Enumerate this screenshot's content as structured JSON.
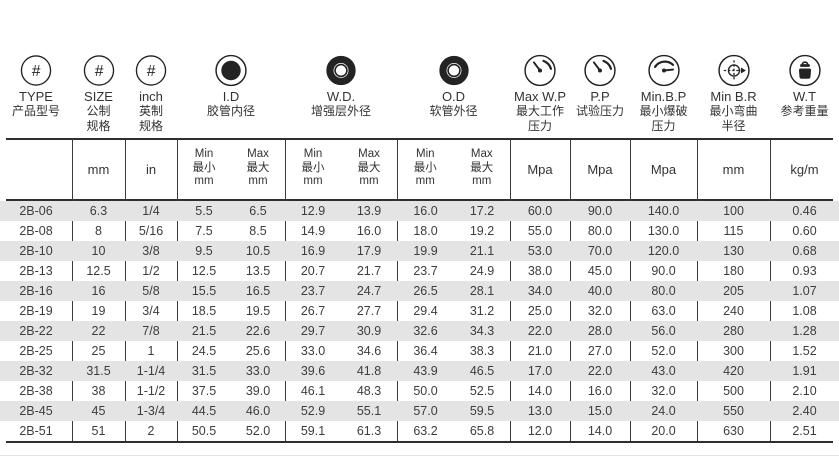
{
  "table": {
    "columns": [
      {
        "en": "TYPE",
        "cn": [
          "产品型号"
        ],
        "icon": "hash-circle-icon",
        "unit": ""
      },
      {
        "en": "SIZE",
        "cn": [
          "公制",
          "规格"
        ],
        "icon": "hash-circle-icon",
        "unit": "mm"
      },
      {
        "en": "inch",
        "cn": [
          "英制",
          "规格"
        ],
        "icon": "hash-circle-icon",
        "unit": "in"
      },
      {
        "en": "I.D",
        "cn": [
          "胶管内径"
        ],
        "icon": "inner-diameter-icon",
        "unit": "mm",
        "minmax": true
      },
      {
        "en": "W.D.",
        "cn": [
          "增强层外径"
        ],
        "icon": "reinforcement-ring-icon",
        "unit": "mm",
        "minmax": true
      },
      {
        "en": "O.D",
        "cn": [
          "软管外径"
        ],
        "icon": "outer-ring-icon",
        "unit": "mm",
        "minmax": true
      },
      {
        "en": "Max W.P",
        "cn": [
          "最大工作",
          "压力"
        ],
        "icon": "pressure-gauge-icon",
        "unit": "Mpa"
      },
      {
        "en": "P.P",
        "cn": [
          "试验压力"
        ],
        "icon": "pressure-gauge-icon",
        "unit": "Mpa"
      },
      {
        "en": "Min.B.P",
        "cn": [
          "最小爆破",
          "压力"
        ],
        "icon": "burst-pressure-gauge-icon",
        "unit": "Mpa"
      },
      {
        "en": "Min B.R",
        "cn": [
          "最小弯曲",
          "半径"
        ],
        "icon": "bend-radius-icon",
        "unit": "mm"
      },
      {
        "en": "W.T",
        "cn": [
          "参考重量"
        ],
        "icon": "weight-icon",
        "unit": "kg/m"
      }
    ],
    "minmax_labels": {
      "min_en": "Min",
      "min_cn": "最小",
      "max_en": "Max",
      "max_cn": "最大",
      "sub_unit": "mm"
    },
    "rows": [
      [
        "2B-06",
        "6.3",
        "1/4",
        "5.5",
        "6.5",
        "12.9",
        "13.9",
        "16.0",
        "17.2",
        "60.0",
        "90.0",
        "140.0",
        "100",
        "0.46"
      ],
      [
        "2B-08",
        "8",
        "5/16",
        "7.5",
        "8.5",
        "14.9",
        "16.0",
        "18.0",
        "19.2",
        "55.0",
        "80.0",
        "130.0",
        "115",
        "0.60"
      ],
      [
        "2B-10",
        "10",
        "3/8",
        "9.5",
        "10.5",
        "16.9",
        "17.9",
        "19.9",
        "21.1",
        "53.0",
        "70.0",
        "120.0",
        "130",
        "0.68"
      ],
      [
        "2B-13",
        "12.5",
        "1/2",
        "12.5",
        "13.5",
        "20.7",
        "21.7",
        "23.7",
        "24.9",
        "38.0",
        "45.0",
        "90.0",
        "180",
        "0.93"
      ],
      [
        "2B-16",
        "16",
        "5/8",
        "15.5",
        "16.5",
        "23.7",
        "24.7",
        "26.5",
        "28.1",
        "34.0",
        "40.0",
        "80.0",
        "205",
        "1.07"
      ],
      [
        "2B-19",
        "19",
        "3/4",
        "18.5",
        "19.5",
        "26.7",
        "27.7",
        "29.4",
        "31.2",
        "25.0",
        "32.0",
        "63.0",
        "240",
        "1.08"
      ],
      [
        "2B-22",
        "22",
        "7/8",
        "21.5",
        "22.6",
        "29.7",
        "30.9",
        "32.6",
        "34.3",
        "22.0",
        "28.0",
        "56.0",
        "280",
        "1.28"
      ],
      [
        "2B-25",
        "25",
        "1",
        "24.5",
        "25.6",
        "33.0",
        "34.6",
        "36.4",
        "38.3",
        "21.0",
        "27.0",
        "52.0",
        "300",
        "1.52"
      ],
      [
        "2B-32",
        "31.5",
        "1-1/4",
        "31.5",
        "33.0",
        "39.6",
        "41.8",
        "43.9",
        "46.5",
        "17.0",
        "22.0",
        "43.0",
        "420",
        "1.91"
      ],
      [
        "2B-38",
        "38",
        "1-1/2",
        "37.5",
        "39.0",
        "46.1",
        "48.3",
        "50.0",
        "52.5",
        "14.0",
        "16.0",
        "32.0",
        "500",
        "2.10"
      ],
      [
        "2B-45",
        "45",
        "1-3/4",
        "44.5",
        "46.0",
        "52.9",
        "55.1",
        "57.0",
        "59.5",
        "13.0",
        "15.0",
        "24.0",
        "550",
        "2.40"
      ],
      [
        "2B-51",
        "51",
        "2",
        "50.5",
        "52.0",
        "59.1",
        "61.3",
        "63.2",
        "65.8",
        "12.0",
        "14.0",
        "20.0",
        "630",
        "2.51"
      ]
    ],
    "colors": {
      "stripe": "#e4e4e4",
      "line_dark": "#2f2f2f",
      "line_vertical": "#3c3c3c",
      "text": "#3a3a3a",
      "icon": "#232323"
    }
  }
}
